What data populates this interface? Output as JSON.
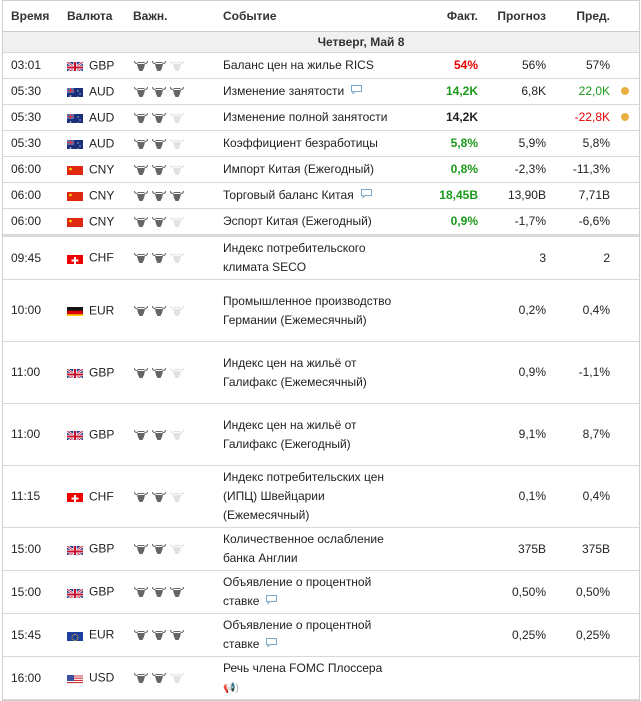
{
  "header": {
    "time": "Время",
    "currency": "Валюта",
    "importance": "Важн.",
    "event": "Событие",
    "actual": "Факт.",
    "forecast": "Прогноз",
    "previous": "Пред."
  },
  "date_label": "Четверг, Май 8",
  "colors": {
    "green": "#1a9a1a",
    "red": "#e60000",
    "bull_on": "#666666",
    "bull_off": "#e2e2e2",
    "dot": "#e8b040"
  },
  "rows": [
    {
      "time": "03:01",
      "cur": "GBP",
      "imp": 2,
      "event": "Баланс цен на жилье RICS",
      "actual": "54%",
      "ac": "red",
      "forecast": "56%",
      "prev": "57%",
      "pc": "",
      "comment": false,
      "dot": false
    },
    {
      "time": "05:30",
      "cur": "AUD",
      "imp": 3,
      "event": "Изменение занятости",
      "actual": "14,2K",
      "ac": "green",
      "forecast": "6,8K",
      "prev": "22,0K",
      "pc": "green",
      "comment": true,
      "dot": true
    },
    {
      "time": "05:30",
      "cur": "AUD",
      "imp": 2,
      "event": "Изменение полной занятости",
      "actual": "14,2K",
      "ac": "",
      "forecast": "",
      "prev": "-22,8K",
      "pc": "red",
      "comment": false,
      "dot": true
    },
    {
      "time": "05:30",
      "cur": "AUD",
      "imp": 2,
      "event": "Коэффициент безработицы",
      "actual": "5,8%",
      "ac": "green",
      "forecast": "5,9%",
      "prev": "5,8%",
      "pc": "",
      "comment": false,
      "dot": false
    },
    {
      "time": "06:00",
      "cur": "CNY",
      "imp": 2,
      "event": "Импорт Китая (Ежегодный)",
      "actual": "0,8%",
      "ac": "green",
      "forecast": "-2,3%",
      "prev": "-11,3%",
      "pc": "",
      "comment": false,
      "dot": false
    },
    {
      "time": "06:00",
      "cur": "CNY",
      "imp": 3,
      "event": "Торговый баланс Китая",
      "actual": "18,45B",
      "ac": "green",
      "forecast": "13,90B",
      "prev": "7,71B",
      "pc": "",
      "comment": true,
      "dot": false
    },
    {
      "time": "06:00",
      "cur": "CNY",
      "imp": 2,
      "event": "Эспорт Китая (Ежегодный)",
      "actual": "0,9%",
      "ac": "green",
      "forecast": "-1,7%",
      "prev": "-6,6%",
      "pc": "",
      "comment": false,
      "dot": false
    },
    {
      "time": "09:45",
      "cur": "CHF",
      "imp": 2,
      "event": "Индекс потребительского климата SECO",
      "actual": "",
      "ac": "",
      "forecast": "3",
      "prev": "2",
      "pc": "",
      "comment": false,
      "dot": false
    },
    {
      "time": "10:00",
      "cur": "EUR",
      "flag": "DE",
      "imp": 2,
      "event": "Промышленное производство Германии (Ежемесячный)",
      "actual": "",
      "ac": "",
      "forecast": "0,2%",
      "prev": "0,4%",
      "pc": "",
      "comment": false,
      "dot": false
    },
    {
      "time": "11:00",
      "cur": "GBP",
      "imp": 2,
      "event": "Индекс цен на жильё от Галифакс (Ежемесячный)",
      "actual": "",
      "ac": "",
      "forecast": "0,9%",
      "prev": "-1,1%",
      "pc": "",
      "comment": false,
      "dot": false
    },
    {
      "time": "11:00",
      "cur": "GBP",
      "imp": 2,
      "event": "Индекс цен на жильё от Галифакс (Ежегодный)",
      "actual": "",
      "ac": "",
      "forecast": "9,1%",
      "prev": "8,7%",
      "pc": "",
      "comment": false,
      "dot": false
    },
    {
      "time": "11:15",
      "cur": "CHF",
      "imp": 2,
      "event": "Индекс потребительских цен (ИПЦ) Швейцарии (Ежемесячный)",
      "actual": "",
      "ac": "",
      "forecast": "0,1%",
      "prev": "0,4%",
      "pc": "",
      "comment": false,
      "dot": false
    },
    {
      "time": "15:00",
      "cur": "GBP",
      "imp": 2,
      "event": "Количественное ослабление банка Англии",
      "actual": "",
      "ac": "",
      "forecast": "375B",
      "prev": "375B",
      "pc": "",
      "comment": false,
      "dot": false
    },
    {
      "time": "15:00",
      "cur": "GBP",
      "imp": 3,
      "event": "Объявление о процентной ставке",
      "actual": "",
      "ac": "",
      "forecast": "0,50%",
      "prev": "0,50%",
      "pc": "",
      "comment": true,
      "dot": false
    },
    {
      "time": "15:45",
      "cur": "EUR",
      "imp": 3,
      "event": "Объявление о процентной ставке",
      "actual": "",
      "ac": "",
      "forecast": "0,25%",
      "prev": "0,25%",
      "pc": "",
      "comment": true,
      "dot": false
    },
    {
      "time": "16:00",
      "cur": "USD",
      "imp": 2,
      "event": "Речь члена FOMC Плоссера",
      "actual": "",
      "ac": "",
      "forecast": "",
      "prev": "",
      "pc": "",
      "comment": false,
      "dot": false,
      "speech": true
    }
  ]
}
